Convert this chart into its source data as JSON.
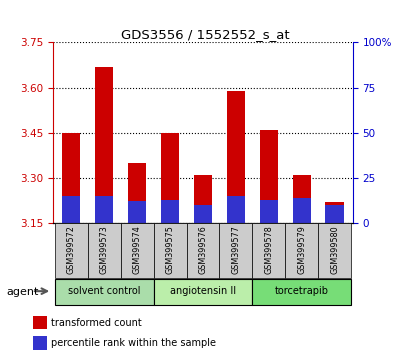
{
  "title": "GDS3556 / 1552552_s_at",
  "samples": [
    "GSM399572",
    "GSM399573",
    "GSM399574",
    "GSM399575",
    "GSM399576",
    "GSM399577",
    "GSM399578",
    "GSM399579",
    "GSM399580"
  ],
  "red_values": [
    3.45,
    3.67,
    3.35,
    3.45,
    3.31,
    3.59,
    3.46,
    3.31,
    3.22
  ],
  "blue_pct": [
    15,
    15,
    12,
    13,
    10,
    15,
    13,
    14,
    10
  ],
  "ymin": 3.15,
  "ymax": 3.75,
  "yticks_left": [
    3.15,
    3.3,
    3.45,
    3.6,
    3.75
  ],
  "yticks_right": [
    0,
    25,
    50,
    75,
    100
  ],
  "groups": [
    {
      "label": "solvent control",
      "start": 0,
      "end": 3
    },
    {
      "label": "angiotensin II",
      "start": 3,
      "end": 6
    },
    {
      "label": "torcetrapib",
      "start": 6,
      "end": 9
    }
  ],
  "group_colors": [
    "#AADDAA",
    "#BBEEAA",
    "#77DD77"
  ],
  "bar_color_red": "#CC0000",
  "bar_color_blue": "#3333CC",
  "bar_width": 0.55,
  "left_axis_color": "#CC0000",
  "right_axis_color": "#0000CC",
  "agent_label": "agent",
  "legend1": "transformed count",
  "legend2": "percentile rank within the sample",
  "grid_color": "#000000",
  "sample_bg_color": "#CCCCCC"
}
